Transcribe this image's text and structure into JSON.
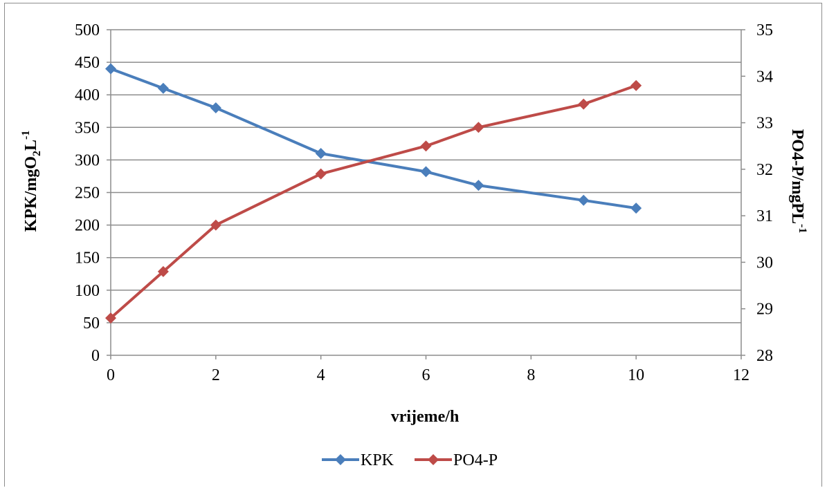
{
  "chart_data": {
    "type": "line",
    "title": "",
    "xlabel": "vrijeme/h",
    "ylabel": "KPK/mgO",
    "ylabel_sub": "2",
    "ylabel_tail": "L",
    "ylabel_sup": "-1",
    "y2label": "PO4-P/mgPL",
    "y2label_sup": "-1",
    "xlim": [
      0,
      12
    ],
    "xticks": [
      0,
      2,
      4,
      6,
      8,
      10,
      12
    ],
    "ylim": [
      0,
      500
    ],
    "yticks": [
      0,
      50,
      100,
      150,
      200,
      250,
      300,
      350,
      400,
      450,
      500
    ],
    "y2lim": [
      28,
      35
    ],
    "y2ticks": [
      28,
      29,
      30,
      31,
      32,
      33,
      34,
      35
    ],
    "grid": true,
    "legend": "bottom",
    "series": [
      {
        "name": "KPK",
        "axis": "left",
        "color": "#4a7ebb",
        "x": [
          0,
          1,
          2,
          4,
          6,
          7,
          9,
          10
        ],
        "values": [
          440,
          410,
          380,
          310,
          282,
          261,
          238,
          226
        ]
      },
      {
        "name": "PO4-P",
        "axis": "right",
        "color": "#be4b48",
        "x": [
          0,
          1,
          2,
          4,
          6,
          7,
          9,
          10
        ],
        "values": [
          28.8,
          29.8,
          30.8,
          31.9,
          32.5,
          32.9,
          33.4,
          33.8
        ]
      }
    ]
  }
}
